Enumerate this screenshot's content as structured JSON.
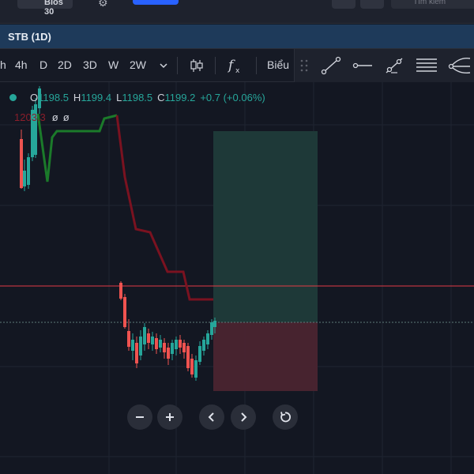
{
  "top_strip": {
    "interval_text": "Bios 30",
    "search_placeholder": "Tìm kiếm"
  },
  "title_bar": {
    "title": "STB (1D)"
  },
  "toolbar": {
    "timeframes": [
      "h",
      "4h",
      "D",
      "2D",
      "3D",
      "W",
      "2W"
    ],
    "chart_type_label": "Biểu"
  },
  "legend": {
    "open_label": "O",
    "open": "1198.5",
    "high_label": "H",
    "high": "1199.4",
    "low_label": "L",
    "low": "1198.5",
    "close_label": "C",
    "close": "1199.2",
    "change": "+0.7 (+0.06%)",
    "indicator_value": "1203.3",
    "indicator_params": [
      "ø",
      "ø"
    ]
  },
  "colors": {
    "up": "#26a69a",
    "down": "#ef5350",
    "indicator_up": "#1b7a2a",
    "indicator_down": "#7a1220",
    "price_line": "#e23a45",
    "profit_zone": "#1f3b3a",
    "loss_zone": "#4a2430"
  },
  "icons": [
    "candles-icon",
    "fx-icon",
    "drag-handle-icon",
    "trend-line-icon",
    "horizontal-ray-icon",
    "trend-angle-icon",
    "parallel-channel-icon",
    "pitchfork-icon",
    "gear-icon",
    "search-icon"
  ],
  "nav": {
    "buttons": [
      "zoom-out",
      "zoom-in",
      "scroll-left",
      "scroll-right",
      "reset"
    ]
  }
}
